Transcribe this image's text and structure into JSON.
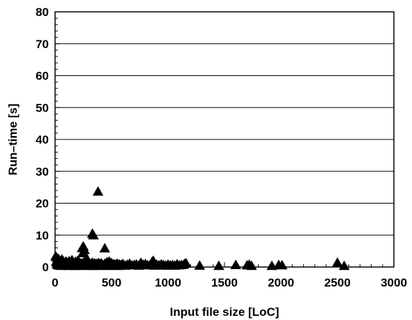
{
  "chart_data": {
    "type": "scatter",
    "xlabel": "Input file size [LoC]",
    "ylabel": "Run–time [s]",
    "xlim": [
      0,
      3000
    ],
    "ylim": [
      0,
      80
    ],
    "x_ticks": [
      "0",
      "500",
      "1000",
      "1500",
      "2000",
      "2500",
      "3000"
    ],
    "y_ticks": [
      "0",
      "10",
      "20",
      "30",
      "40",
      "50",
      "60",
      "70",
      "80"
    ],
    "grid": "horizontal",
    "marker": "triangle",
    "marker_color": "#000000",
    "series": [
      {
        "x": [
          5,
          10,
          15,
          20,
          25,
          30,
          35,
          40,
          45,
          50,
          55,
          60,
          65,
          70,
          75,
          80,
          85,
          90,
          95,
          100,
          105,
          110,
          115,
          120,
          125,
          130,
          135,
          140,
          145,
          150,
          155,
          160,
          165,
          170,
          175,
          180,
          185,
          190,
          195,
          200,
          205,
          210,
          215,
          220,
          225,
          230,
          235,
          240,
          245,
          250,
          255,
          260,
          265,
          270,
          275,
          280,
          285,
          290,
          295,
          300,
          305,
          310,
          315,
          320,
          325,
          330,
          335,
          340,
          345,
          350,
          355,
          360,
          365,
          370,
          375,
          380,
          385,
          390,
          395,
          400,
          410,
          420,
          430,
          440,
          450,
          460,
          470,
          480,
          490,
          500,
          510,
          520,
          530,
          540,
          550,
          560,
          570,
          580,
          590,
          600,
          620,
          640,
          660,
          680,
          700,
          720,
          740,
          760,
          780,
          800,
          820,
          840,
          860,
          880,
          900,
          920,
          940,
          960,
          980,
          1000,
          1020,
          1040,
          1060,
          1080,
          1100,
          1120,
          1140,
          1160,
          1280,
          1450,
          1600,
          1700,
          1720,
          1740,
          1920,
          1980,
          2010,
          2500,
          2560,
          240,
          250,
          260,
          330,
          340,
          380,
          440,
          15,
          30,
          60,
          150,
          200,
          280,
          480,
          870,
          1150
        ],
        "y": [
          3.2,
          1.5,
          0.8,
          2.1,
          0.4,
          1.2,
          0.6,
          1.9,
          0.3,
          0.9,
          1.4,
          0.2,
          0.7,
          1.8,
          0.5,
          1.1,
          0.3,
          0.8,
          1.6,
          0.4,
          1.3,
          0.6,
          0.9,
          0.2,
          1.7,
          0.5,
          1.0,
          0.3,
          1.4,
          0.6,
          0.8,
          1.2,
          0.4,
          0.9,
          0.2,
          1.5,
          0.7,
          0.3,
          1.1,
          0.5,
          0.9,
          0.2,
          1.3,
          0.6,
          0.4,
          1.0,
          0.3,
          0.8,
          4.2,
          1.2,
          0.5,
          0.9,
          0.3,
          1.1,
          0.6,
          0.4,
          0.8,
          1.3,
          0.2,
          0.7,
          1.0,
          0.4,
          0.6,
          0.9,
          0.3,
          1.2,
          0.5,
          0.8,
          0.2,
          1.0,
          0.4,
          0.7,
          0.3,
          0.9,
          0.5,
          0.6,
          1.1,
          0.2,
          0.8,
          0.4,
          1.0,
          0.6,
          0.3,
          0.9,
          0.5,
          1.4,
          0.2,
          0.7,
          0.4,
          1.1,
          0.3,
          0.8,
          0.5,
          0.6,
          0.9,
          0.2,
          0.7,
          0.4,
          0.5,
          0.8,
          0.3,
          0.6,
          0.9,
          0.4,
          0.5,
          0.7,
          0.3,
          1.2,
          0.6,
          0.8,
          0.4,
          0.5,
          1.5,
          0.3,
          0.6,
          0.4,
          0.7,
          0.5,
          0.3,
          0.6,
          0.4,
          0.5,
          0.3,
          0.7,
          0.4,
          0.5,
          0.6,
          1.0,
          0.3,
          0.2,
          0.5,
          0.4,
          0.6,
          0.2,
          0.2,
          0.5,
          0.4,
          1.2,
          0.2,
          5.8,
          6.3,
          5.2,
          10.3,
          9.8,
          23.5,
          5.7,
          2.8,
          2.4,
          2.2,
          2.0,
          1.8,
          2.6,
          1.6,
          1.8,
          0.9
        ]
      }
    ]
  }
}
